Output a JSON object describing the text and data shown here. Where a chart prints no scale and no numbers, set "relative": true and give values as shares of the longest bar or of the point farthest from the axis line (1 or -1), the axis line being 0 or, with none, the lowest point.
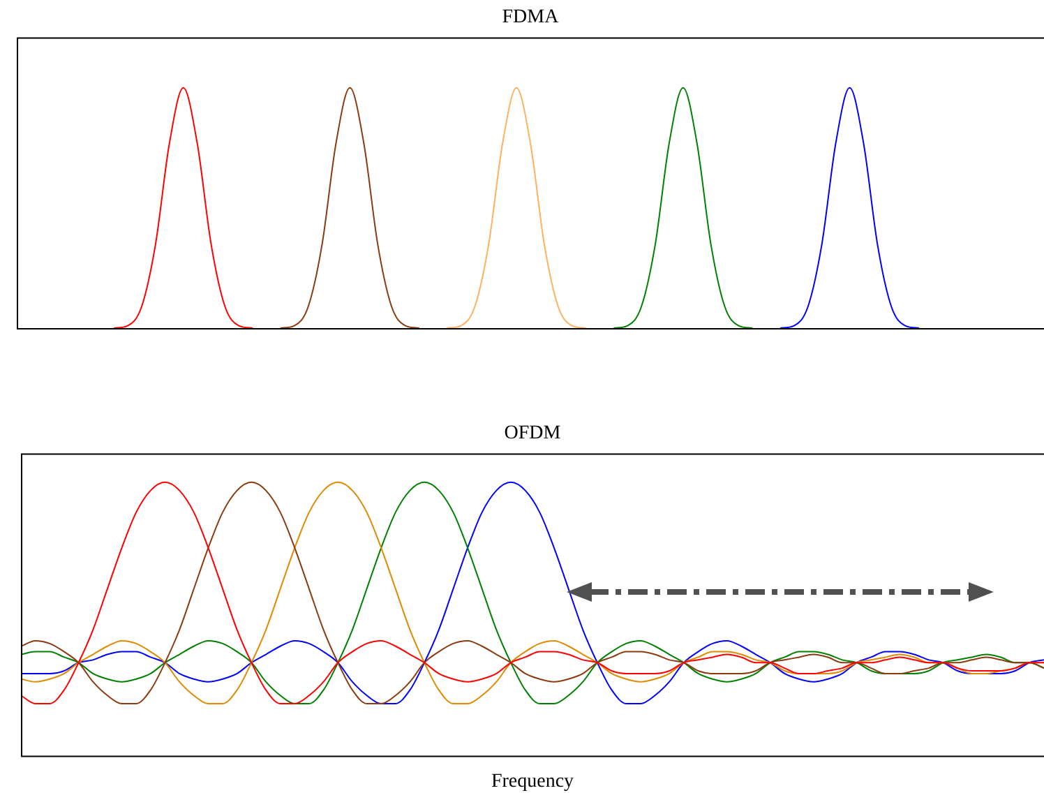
{
  "chart_data": [
    {
      "type": "line",
      "title": "FDMA",
      "relative": true,
      "tick_labels": false,
      "categories": [
        null,
        null,
        null,
        null,
        null,
        null,
        null,
        null,
        null,
        null,
        null,
        null,
        null,
        null,
        null,
        null,
        null,
        null,
        null,
        null,
        null,
        null,
        null,
        null,
        null,
        null,
        null,
        null,
        null,
        null,
        null,
        null,
        null,
        null,
        null,
        null,
        null,
        null,
        null,
        null,
        null,
        null,
        null,
        null,
        null,
        null,
        null,
        null,
        null,
        null,
        null,
        null,
        null,
        null,
        null,
        null,
        null,
        null,
        null,
        null,
        null,
        null,
        null,
        null,
        null,
        null,
        null,
        null,
        null,
        null,
        null,
        null,
        null,
        null,
        null
      ],
      "series": [
        {
          "color": "#ff0000",
          "values": [
            null,
            null,
            null,
            null,
            null,
            null,
            null,
            0,
            0.01,
            0.09,
            0.35,
            0.77,
            1,
            0.77,
            0.35,
            0.09,
            0.01,
            0,
            null,
            null,
            null,
            null,
            null,
            null,
            null,
            null,
            null,
            null,
            null,
            null,
            null,
            null,
            null,
            null,
            null,
            null,
            null,
            null,
            null,
            null,
            null,
            null,
            null,
            null,
            null,
            null,
            null,
            null,
            null,
            null,
            null,
            null,
            null,
            null,
            null,
            null,
            null,
            null,
            null,
            null,
            null,
            null,
            null,
            null,
            null,
            null,
            null,
            null,
            null,
            null,
            null,
            null,
            null,
            null,
            null
          ]
        },
        {
          "color": "#8b3a0f",
          "values": [
            null,
            null,
            null,
            null,
            null,
            null,
            null,
            null,
            null,
            null,
            null,
            null,
            null,
            null,
            null,
            null,
            null,
            null,
            null,
            0,
            0.01,
            0.09,
            0.35,
            0.77,
            1,
            0.77,
            0.35,
            0.09,
            0.01,
            0,
            null,
            null,
            null,
            null,
            null,
            null,
            null,
            null,
            null,
            null,
            null,
            null,
            null,
            null,
            null,
            null,
            null,
            null,
            null,
            null,
            null,
            null,
            null,
            null,
            null,
            null,
            null,
            null,
            null,
            null,
            null,
            null,
            null,
            null,
            null,
            null,
            null,
            null,
            null,
            null,
            null,
            null,
            null,
            null,
            null
          ]
        },
        {
          "color": "#ffb060",
          "values": [
            null,
            null,
            null,
            null,
            null,
            null,
            null,
            null,
            null,
            null,
            null,
            null,
            null,
            null,
            null,
            null,
            null,
            null,
            null,
            null,
            null,
            null,
            null,
            null,
            null,
            null,
            null,
            null,
            null,
            null,
            null,
            0,
            0.01,
            0.09,
            0.35,
            0.77,
            1,
            0.77,
            0.35,
            0.09,
            0.01,
            0,
            null,
            null,
            null,
            null,
            null,
            null,
            null,
            null,
            null,
            null,
            null,
            null,
            null,
            null,
            null,
            null,
            null,
            null,
            null,
            null,
            null,
            null,
            null,
            null,
            null,
            null,
            null,
            null,
            null,
            null,
            null,
            null,
            null
          ]
        },
        {
          "color": "#008000",
          "values": [
            null,
            null,
            null,
            null,
            null,
            null,
            null,
            null,
            null,
            null,
            null,
            null,
            null,
            null,
            null,
            null,
            null,
            null,
            null,
            null,
            null,
            null,
            null,
            null,
            null,
            null,
            null,
            null,
            null,
            null,
            null,
            null,
            null,
            null,
            null,
            null,
            null,
            null,
            null,
            null,
            null,
            null,
            null,
            0,
            0.01,
            0.09,
            0.35,
            0.77,
            1,
            0.77,
            0.35,
            0.09,
            0.01,
            0,
            null,
            null,
            null,
            null,
            null,
            null,
            null,
            null,
            null,
            null,
            null,
            null,
            null,
            null,
            null,
            null,
            null,
            null,
            null,
            null,
            null
          ]
        },
        {
          "color": "#0000ff",
          "values": [
            null,
            null,
            null,
            null,
            null,
            null,
            null,
            null,
            null,
            null,
            null,
            null,
            null,
            null,
            null,
            null,
            null,
            null,
            null,
            null,
            null,
            null,
            null,
            null,
            null,
            null,
            null,
            null,
            null,
            null,
            null,
            null,
            null,
            null,
            null,
            null,
            null,
            null,
            null,
            null,
            null,
            null,
            null,
            null,
            null,
            null,
            null,
            null,
            null,
            null,
            null,
            null,
            null,
            null,
            null,
            0,
            0.01,
            0.09,
            0.35,
            0.77,
            1,
            0.77,
            0.35,
            0.09,
            0.01,
            0,
            null,
            null,
            null,
            null,
            null,
            null,
            null,
            null,
            null
          ]
        }
      ]
    },
    {
      "type": "line",
      "title": "OFDM",
      "xlabel": "Frequency",
      "relative": true,
      "tick_labels": false,
      "categories": [
        null,
        null,
        null,
        null,
        null,
        null,
        null,
        null,
        null,
        null,
        null,
        null,
        null,
        null,
        null,
        null,
        null,
        null,
        null,
        null,
        null,
        null,
        null,
        null,
        null,
        null,
        null,
        null,
        null,
        null,
        null,
        null,
        null,
        null,
        null,
        null,
        null,
        null,
        null,
        null,
        null,
        null,
        null,
        null,
        null,
        null,
        null,
        null,
        null,
        null,
        null,
        null,
        null,
        null,
        null,
        null,
        null,
        null,
        null,
        null,
        null,
        null,
        null,
        null,
        null,
        null,
        null,
        null,
        null,
        null,
        null,
        null
      ],
      "series": [
        {
          "color": "#ff0000",
          "values": [
            0.22,
            0.19,
            0.19,
            0.24,
            0.34,
            0.46,
            0.61,
            0.76,
            0.89,
            0.97,
            1,
            0.97,
            0.89,
            0.76,
            0.61,
            0.46,
            0.34,
            0.24,
            0.19,
            0.19,
            0.22,
            0.27,
            0.34,
            0.38,
            0.41,
            0.42,
            0.4,
            0.37,
            0.34,
            0.3,
            0.28,
            0.27,
            0.28,
            0.3,
            0.34,
            0.36,
            0.38,
            0.38,
            0.37,
            0.35,
            0.34,
            0.31,
            0.3,
            0.3,
            0.3,
            0.31,
            0.34,
            0.35,
            0.36,
            0.37,
            0.36,
            0.34,
            0.34,
            0.32,
            0.3,
            0.3,
            0.31,
            0.32,
            0.34,
            0.34,
            0.35,
            0.36,
            0.35,
            0.34,
            0.34,
            0.32,
            0.31,
            0.31,
            0.31,
            0.32,
            0.34,
            0.34
          ]
        },
        {
          "color": "#8b3a0f",
          "values": [
            0.4,
            0.42,
            0.41,
            0.38,
            0.34,
            0.27,
            0.22,
            0.19,
            0.19,
            0.24,
            0.34,
            0.46,
            0.61,
            0.76,
            0.89,
            0.97,
            1,
            0.97,
            0.89,
            0.76,
            0.61,
            0.46,
            0.34,
            0.24,
            0.19,
            0.19,
            0.22,
            0.27,
            0.34,
            0.38,
            0.41,
            0.42,
            0.4,
            0.37,
            0.34,
            0.3,
            0.28,
            0.27,
            0.28,
            0.3,
            0.34,
            0.36,
            0.38,
            0.38,
            0.37,
            0.35,
            0.34,
            0.31,
            0.3,
            0.3,
            0.3,
            0.31,
            0.34,
            0.35,
            0.36,
            0.37,
            0.36,
            0.34,
            0.34,
            0.32,
            0.3,
            0.3,
            0.31,
            0.32,
            0.34,
            0.34,
            0.35,
            0.36,
            0.35,
            0.34,
            0.34,
            0.32
          ]
        },
        {
          "color": "#e08a00",
          "values": [
            0.28,
            0.27,
            0.28,
            0.3,
            0.34,
            0.37,
            0.4,
            0.42,
            0.41,
            0.38,
            0.34,
            0.27,
            0.22,
            0.19,
            0.19,
            0.24,
            0.34,
            0.46,
            0.61,
            0.76,
            0.89,
            0.97,
            1,
            0.97,
            0.89,
            0.76,
            0.61,
            0.46,
            0.34,
            0.24,
            0.19,
            0.19,
            0.22,
            0.27,
            0.34,
            0.38,
            0.41,
            0.42,
            0.4,
            0.37,
            0.34,
            0.3,
            0.28,
            0.27,
            0.28,
            0.3,
            0.34,
            0.36,
            0.38,
            0.38,
            0.37,
            0.35,
            0.34,
            0.31,
            0.3,
            0.3,
            0.3,
            0.31,
            0.34,
            0.35,
            0.36,
            0.37,
            0.36,
            0.34,
            0.34,
            0.32,
            0.3,
            0.3,
            0.31,
            0.32,
            0.34,
            0.34
          ]
        },
        {
          "color": "#008000",
          "values": [
            0.37,
            0.38,
            0.38,
            0.36,
            0.34,
            0.3,
            0.28,
            0.27,
            0.28,
            0.3,
            0.34,
            0.37,
            0.4,
            0.42,
            0.41,
            0.38,
            0.34,
            0.27,
            0.22,
            0.19,
            0.19,
            0.24,
            0.34,
            0.46,
            0.61,
            0.76,
            0.89,
            0.97,
            1,
            0.97,
            0.89,
            0.76,
            0.61,
            0.46,
            0.34,
            0.24,
            0.19,
            0.19,
            0.22,
            0.27,
            0.34,
            0.38,
            0.41,
            0.42,
            0.4,
            0.37,
            0.34,
            0.3,
            0.28,
            0.27,
            0.28,
            0.3,
            0.34,
            0.36,
            0.38,
            0.38,
            0.37,
            0.35,
            0.34,
            0.31,
            0.3,
            0.3,
            0.3,
            0.31,
            0.34,
            0.35,
            0.36,
            0.37,
            0.36,
            0.34,
            0.34,
            0.32
          ]
        },
        {
          "color": "#0000ff",
          "values": [
            0.3,
            0.3,
            0.3,
            0.31,
            0.34,
            0.35,
            0.37,
            0.38,
            0.38,
            0.36,
            0.34,
            0.3,
            0.28,
            0.27,
            0.28,
            0.3,
            0.34,
            0.37,
            0.4,
            0.42,
            0.41,
            0.38,
            0.34,
            0.27,
            0.22,
            0.19,
            0.19,
            0.24,
            0.34,
            0.46,
            0.61,
            0.76,
            0.89,
            0.97,
            1,
            0.97,
            0.89,
            0.76,
            0.61,
            0.46,
            0.34,
            0.24,
            0.19,
            0.19,
            0.22,
            0.27,
            0.34,
            0.38,
            0.41,
            0.42,
            0.4,
            0.37,
            0.34,
            0.3,
            0.28,
            0.27,
            0.28,
            0.3,
            0.34,
            0.36,
            0.38,
            0.38,
            0.37,
            0.35,
            0.34,
            0.31,
            0.3,
            0.3,
            0.3,
            0.31,
            0.34,
            0.35
          ]
        }
      ]
    }
  ]
}
